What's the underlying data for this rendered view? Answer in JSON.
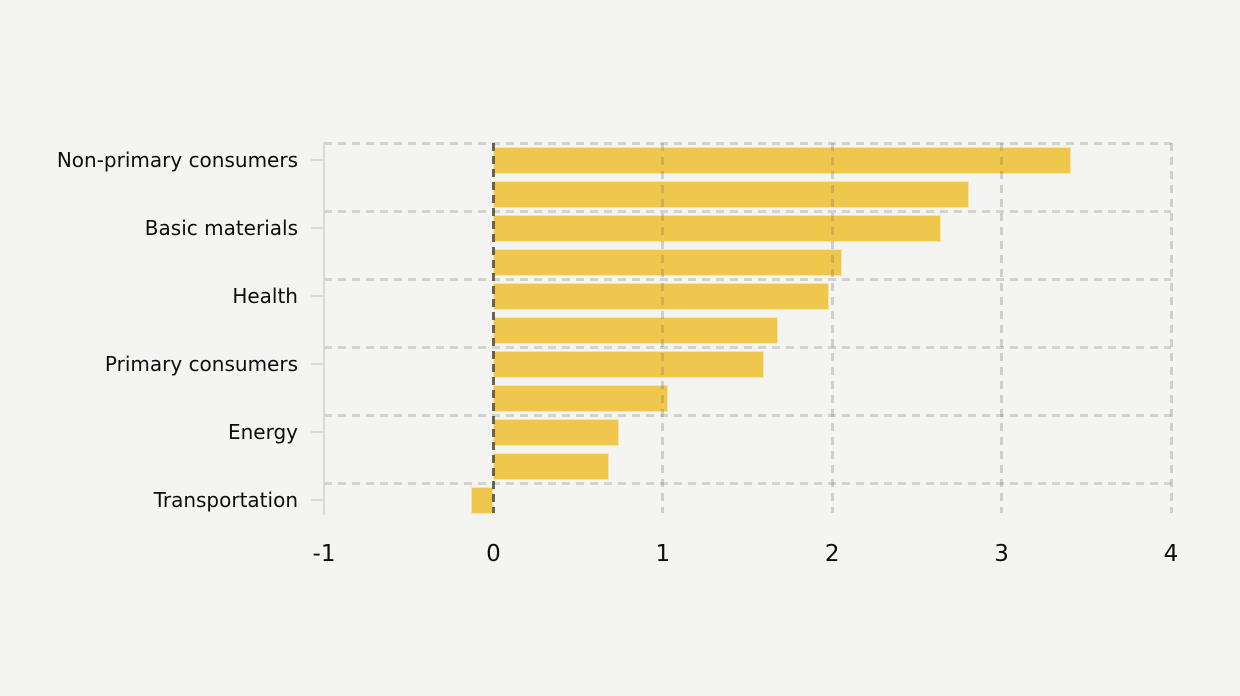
{
  "chart_data": {
    "type": "bar",
    "orientation": "horizontal",
    "title": "",
    "xlabel": "",
    "ylabel": "",
    "rows": [
      {
        "label": "Non-primary consumers",
        "value": 3.41
      },
      {
        "label": "",
        "value": 2.81
      },
      {
        "label": "Basic materials",
        "value": 2.64
      },
      {
        "label": "",
        "value": 2.06
      },
      {
        "label": "Health",
        "value": 1.98
      },
      {
        "label": "",
        "value": 1.68
      },
      {
        "label": "Primary consumers",
        "value": 1.6
      },
      {
        "label": "",
        "value": 1.03
      },
      {
        "label": "Energy",
        "value": 0.74
      },
      {
        "label": "",
        "value": 0.68
      },
      {
        "label": "Transportation",
        "value": -0.13
      }
    ],
    "y_axis_labels": [
      "Non-primary consumers",
      "Basic materials",
      "Health",
      "Primary consumers",
      "Energy",
      "Transportation"
    ],
    "xticks": [
      "-1",
      "0",
      "1",
      "2",
      "3",
      "4"
    ],
    "xlim": [
      -1,
      4
    ],
    "grid": "dashed",
    "legend": "none",
    "zero_line": true,
    "colors": {
      "bar": "#f0c74d",
      "background": "#f4f4f3",
      "gridline": "#d2d2d0",
      "zero_line": "#49463a",
      "axis_spine": "#d9d9d7",
      "text": "#0d0d0d"
    }
  }
}
